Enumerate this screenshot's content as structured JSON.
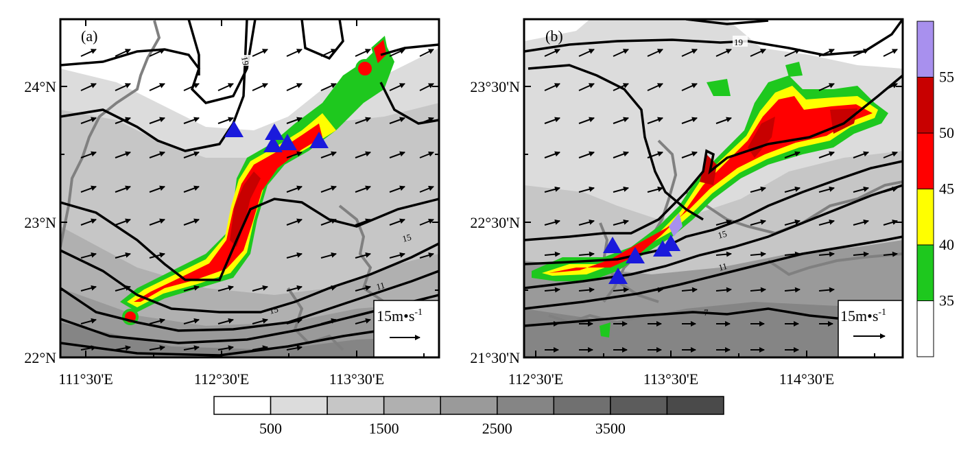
{
  "panels": [
    {
      "label": "(a)",
      "y_ticks": [
        "24°N",
        "23°N",
        "22°N"
      ],
      "x_ticks": [
        "111°30'E",
        "112°30'E",
        "113°30'E"
      ],
      "contour_labels": [
        "19",
        "15",
        "11"
      ],
      "wind_scale": "15m•s",
      "wind_scale_exp": "-1"
    },
    {
      "label": "(b)",
      "y_ticks": [
        "23°30'N",
        "22°30'N",
        "21°30'N"
      ],
      "x_ticks": [
        "112°30'E",
        "113°30'E",
        "114°30'E"
      ],
      "contour_labels": [
        "19",
        "15",
        "11",
        "7"
      ],
      "wind_scale": "15m•s",
      "wind_scale_exp": "-1"
    }
  ],
  "reflectivity_colorbar": {
    "ticks": [
      "35",
      "40",
      "45",
      "50",
      "55"
    ],
    "colors": [
      "#ffffff",
      "#1ec81e",
      "#ffff00",
      "#ff0000",
      "#c80000",
      "#a890ee"
    ]
  },
  "terrain_colorbar": {
    "ticks": [
      "500",
      "1500",
      "2500",
      "3500"
    ],
    "colors": [
      "#ffffff",
      "#dcdcdc",
      "#c6c6c6",
      "#b0b0b0",
      "#9a9a9a",
      "#858585",
      "#707070",
      "#5c5c5c",
      "#4a4a4a"
    ]
  },
  "colors": {
    "observation_marker": "#1a1adc",
    "contour": "#000000",
    "coastline": "#808080"
  }
}
